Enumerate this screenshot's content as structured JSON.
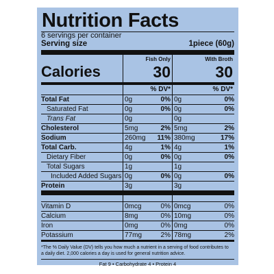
{
  "title": "Nutrition Facts",
  "servings_per_container": "6 servings per container",
  "serving_size": {
    "label": "Serving size",
    "value": "1piece (60g)"
  },
  "calories": {
    "label": "Calories",
    "col1_head": "Fish Only",
    "col1_value": "30",
    "col2_head": "With Broth",
    "col2_value": "30"
  },
  "dv_head": {
    "col1": "% DV*",
    "col2": "% DV*"
  },
  "rows": [
    {
      "label": "Total Fat",
      "a1": "0g",
      "d1": "0%",
      "a2": "0g",
      "d2": "0%"
    },
    {
      "label": "Saturated Fat",
      "a1": "0g",
      "d1": "0%",
      "a2": "0g",
      "d2": "0%"
    },
    {
      "label": "Trans Fat",
      "a1": "0g",
      "d1": "",
      "a2": "0g",
      "d2": ""
    },
    {
      "label": "Cholesterol",
      "a1": "5mg",
      "d1": "2%",
      "a2": "5mg",
      "d2": "2%"
    },
    {
      "label": "Sodium",
      "a1": "260mg",
      "d1": "11%",
      "a2": "380mg",
      "d2": "17%"
    },
    {
      "label": "Total Carb.",
      "a1": "4g",
      "d1": "1%",
      "a2": "4g",
      "d2": "1%"
    },
    {
      "label": "Dietary Fiber",
      "a1": "0g",
      "d1": "0%",
      "a2": "0g",
      "d2": "0%"
    },
    {
      "label": "Total Sugars",
      "a1": "1g",
      "d1": "",
      "a2": "1g",
      "d2": ""
    },
    {
      "label": "Included Added Sugars",
      "a1": "0g",
      "d1": "0%",
      "a2": "0g",
      "d2": "0%"
    },
    {
      "label": "Protein",
      "a1": "3g",
      "d1": "",
      "a2": "3g",
      "d2": ""
    }
  ],
  "micros": [
    {
      "label": "Vitamin D",
      "a1": "0mcg",
      "d1": "0%",
      "a2": "0mcg",
      "d2": "0%"
    },
    {
      "label": "Calcium",
      "a1": "8mg",
      "d1": "0%",
      "a2": "10mg",
      "d2": "0%"
    },
    {
      "label": "Iron",
      "a1": "0mg",
      "d1": "0%",
      "a2": "0mg",
      "d2": "0%"
    },
    {
      "label": "Potassium",
      "a1": "77mg",
      "d1": "2%",
      "a2": "78mg",
      "d2": "2%"
    }
  ],
  "footnote": "*The % Daily Value (DV) tells you how much a nutrient in a serving of food contributes to a daily diet. 2,000 calories a day is used for general nutrition advice.",
  "footer": "Fat 9  •  Carbohydrate 4  •  Protein 4"
}
